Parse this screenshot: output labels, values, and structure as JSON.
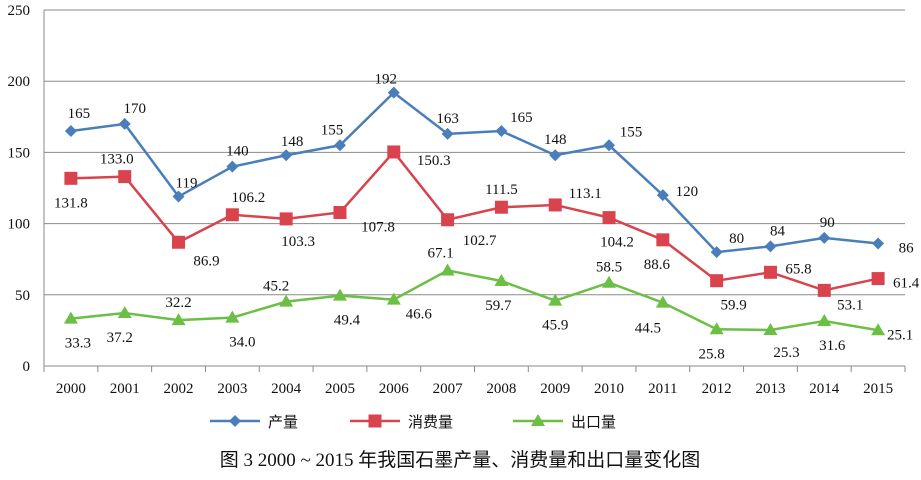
{
  "chart_data": {
    "type": "line",
    "title": "图 3  2000 ~ 2015 年我国石墨产量、消费量和出口量变化图",
    "xlabel": "",
    "ylabel": "",
    "categories": [
      "2000",
      "2001",
      "2002",
      "2003",
      "2004",
      "2005",
      "2006",
      "2007",
      "2008",
      "2009",
      "2010",
      "2011",
      "2012",
      "2013",
      "2014",
      "2015"
    ],
    "ylim": [
      0,
      250
    ],
    "yticks": [
      0,
      50,
      100,
      150,
      200,
      250
    ],
    "grid": true,
    "legend_position": "bottom",
    "series": [
      {
        "name": "产量",
        "color": "#4a7ebb",
        "marker": "diamond",
        "values": [
          165,
          170,
          119,
          140,
          148,
          155,
          192,
          163,
          165,
          148,
          155,
          120,
          80,
          84,
          90,
          86
        ],
        "labels": [
          "165",
          "170",
          "119",
          "140",
          "148",
          "155",
          "192",
          "163",
          "165",
          "148",
          "155",
          "120",
          "80",
          "84",
          "90",
          "86"
        ]
      },
      {
        "name": "消费量",
        "color": "#d9434e",
        "marker": "square",
        "values": [
          131.8,
          133.0,
          86.9,
          106.2,
          103.3,
          107.8,
          150.3,
          102.7,
          111.5,
          113.1,
          104.2,
          88.6,
          59.9,
          65.8,
          53.1,
          61.4
        ],
        "labels": [
          "131.8",
          "133.0",
          "86.9",
          "106.2",
          "103.3",
          "107.8",
          "150.3",
          "102.7",
          "111.5",
          "113.1",
          "104.2",
          "88.6",
          "59.9",
          "65.8",
          "53.1",
          "61.4"
        ]
      },
      {
        "name": "出口量",
        "color": "#6bbf45",
        "marker": "triangle",
        "values": [
          33.3,
          37.2,
          32.2,
          34.0,
          45.2,
          49.4,
          46.6,
          67.1,
          59.7,
          45.9,
          58.5,
          44.5,
          25.8,
          25.3,
          31.6,
          25.1
        ],
        "labels": [
          "33.3",
          "37.2",
          "32.2",
          "34.0",
          "45.2",
          "49.4",
          "46.6",
          "67.1",
          "59.7",
          "45.9",
          "58.5",
          "44.5",
          "25.8",
          "25.3",
          "31.6",
          "25.1"
        ]
      }
    ]
  }
}
